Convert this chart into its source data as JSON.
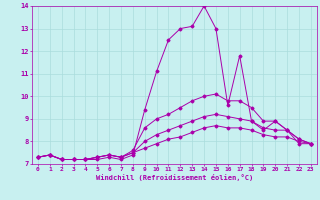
{
  "xlabel": "Windchill (Refroidissement éolien,°C)",
  "background_color": "#c8f0f0",
  "grid_color": "#aadddd",
  "line_color": "#aa00aa",
  "xlim": [
    -0.5,
    23.5
  ],
  "ylim": [
    7,
    14
  ],
  "yticks": [
    7,
    8,
    9,
    10,
    11,
    12,
    13,
    14
  ],
  "xticks": [
    0,
    1,
    2,
    3,
    4,
    5,
    6,
    7,
    8,
    9,
    10,
    11,
    12,
    13,
    14,
    15,
    16,
    17,
    18,
    19,
    20,
    21,
    22,
    23
  ],
  "lines": [
    {
      "x": [
        0,
        1,
        2,
        3,
        4,
        5,
        6,
        7,
        8,
        9,
        10,
        11,
        12,
        13,
        14,
        15,
        16,
        17,
        18,
        19,
        20,
        21,
        22,
        23
      ],
      "y": [
        7.3,
        7.4,
        7.2,
        7.2,
        7.2,
        7.2,
        7.3,
        7.2,
        7.4,
        9.4,
        11.1,
        12.5,
        13.0,
        13.1,
        14.0,
        13.0,
        9.6,
        11.8,
        8.9,
        8.5,
        8.9,
        8.5,
        7.9,
        7.9
      ]
    },
    {
      "x": [
        0,
        1,
        2,
        3,
        4,
        5,
        6,
        7,
        8,
        9,
        10,
        11,
        12,
        13,
        14,
        15,
        16,
        17,
        18,
        19,
        20,
        21,
        22,
        23
      ],
      "y": [
        7.3,
        7.4,
        7.2,
        7.2,
        7.2,
        7.3,
        7.4,
        7.3,
        7.6,
        8.6,
        9.0,
        9.2,
        9.5,
        9.8,
        10.0,
        10.1,
        9.8,
        9.8,
        9.5,
        8.9,
        8.9,
        8.5,
        8.1,
        7.9
      ]
    },
    {
      "x": [
        0,
        1,
        2,
        3,
        4,
        5,
        6,
        7,
        8,
        9,
        10,
        11,
        12,
        13,
        14,
        15,
        16,
        17,
        18,
        19,
        20,
        21,
        22,
        23
      ],
      "y": [
        7.3,
        7.4,
        7.2,
        7.2,
        7.2,
        7.3,
        7.4,
        7.3,
        7.5,
        8.0,
        8.3,
        8.5,
        8.7,
        8.9,
        9.1,
        9.2,
        9.1,
        9.0,
        8.9,
        8.6,
        8.5,
        8.5,
        8.1,
        7.9
      ]
    },
    {
      "x": [
        0,
        1,
        2,
        3,
        4,
        5,
        6,
        7,
        8,
        9,
        10,
        11,
        12,
        13,
        14,
        15,
        16,
        17,
        18,
        19,
        20,
        21,
        22,
        23
      ],
      "y": [
        7.3,
        7.4,
        7.2,
        7.2,
        7.2,
        7.3,
        7.4,
        7.3,
        7.5,
        7.7,
        7.9,
        8.1,
        8.2,
        8.4,
        8.6,
        8.7,
        8.6,
        8.6,
        8.5,
        8.3,
        8.2,
        8.2,
        8.0,
        7.9
      ]
    }
  ]
}
